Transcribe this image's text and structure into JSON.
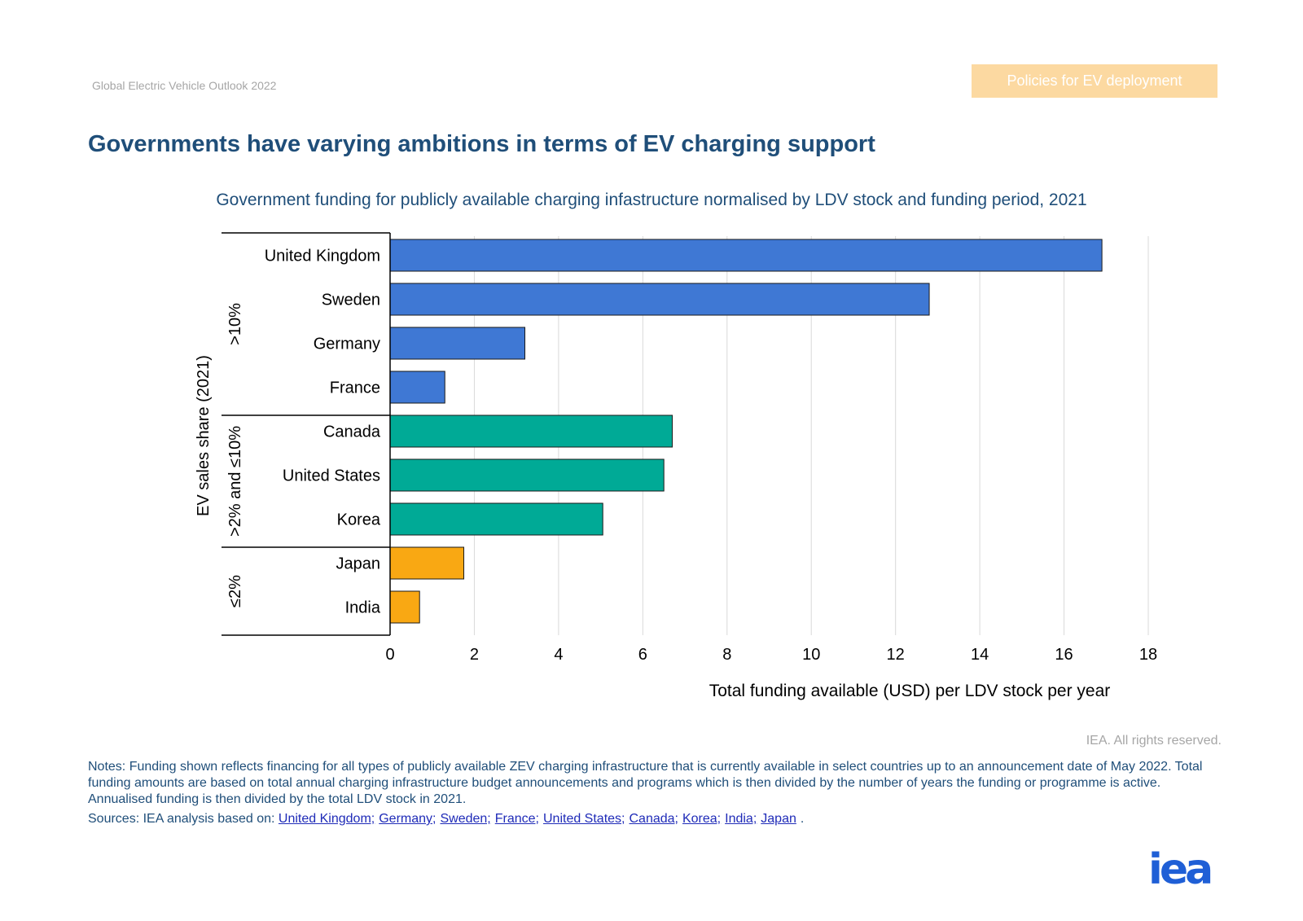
{
  "header": {
    "doc_title": "Global Electric Vehicle Outlook 2022",
    "section_tag": "Policies for EV deployment"
  },
  "headline": "Governments have varying ambitions in terms of EV charging support",
  "chart_data": {
    "type": "bar",
    "orientation": "horizontal",
    "title": "Government funding for publicly available charging infastructure normalised by LDV stock and funding period, 2021",
    "xlabel": "Total funding available (USD) per LDV stock per year",
    "ylabel": "EV sales share (2021)",
    "xlim": [
      0,
      18
    ],
    "xticks": [
      0,
      2,
      4,
      6,
      8,
      10,
      12,
      14,
      16,
      18
    ],
    "grid": "vertical",
    "groups": [
      {
        "label": ">10%",
        "color": "#3f78d4",
        "categories": [
          "United Kingdom",
          "Sweden",
          "Germany",
          "France"
        ],
        "values": [
          16.9,
          12.8,
          3.2,
          1.3
        ]
      },
      {
        "label": ">2% and ≤10%",
        "color": "#00aa96",
        "categories": [
          "Canada",
          "United States",
          "Korea"
        ],
        "values": [
          6.7,
          6.5,
          5.05
        ]
      },
      {
        "label": "≤2%",
        "color": "#f9a813",
        "categories": [
          "Japan",
          "India"
        ],
        "values": [
          1.75,
          0.7
        ]
      }
    ]
  },
  "footer": {
    "rights": "IEA. All rights reserved.",
    "notes": "Notes: Funding shown reflects financing for all types of publicly available ZEV charging infrastructure that is currently available in select countries up to an announcement date of May 2022. Total funding amounts are based on total annual charging infrastructure budget announcements and programs which is then divided by the number of years the funding or programme is active. Annualised funding is then divided by the total LDV stock in 2021.",
    "sources_prefix": "Sources: IEA analysis based on:",
    "source_links": [
      "United Kingdom;",
      "Germany;",
      "Sweden;",
      "France;",
      "United States;",
      "Canada;",
      "Korea;",
      "India;",
      "Japan"
    ],
    "sources_suffix": ".",
    "logo_text": "iea"
  }
}
